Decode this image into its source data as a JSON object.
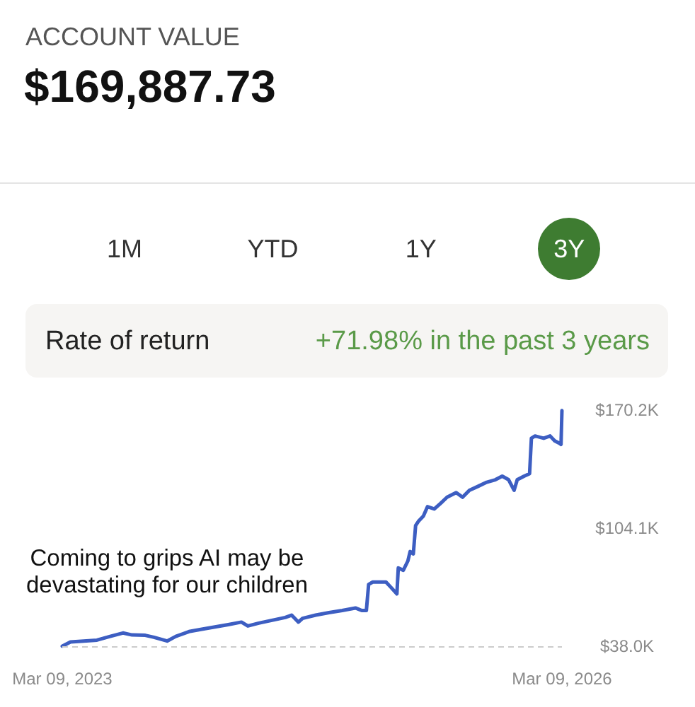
{
  "chart_data": {
    "type": "line",
    "title": "ACCOUNT VALUE",
    "subtitle": "$169,887.73",
    "annotations": [
      "1M",
      "YTD",
      "1Y",
      "3Y",
      "Rate of return",
      "+71.98% in the past 3 years",
      "Coming to grips AI may be devastating for our children"
    ],
    "x": [
      "2023-03-09",
      "2023-03-27",
      "2023-04-25",
      "2023-05-24",
      "2023-06-22",
      "2023-07-20",
      "2023-08-09",
      "2023-09-07",
      "2023-09-26",
      "2023-10-25",
      "2023-11-13",
      "2023-12-12",
      "2024-01-09",
      "2024-02-07",
      "2024-03-07",
      "2024-04-05",
      "2024-04-19",
      "2024-05-13",
      "2024-06-11",
      "2024-07-10",
      "2024-07-24",
      "2024-08-08",
      "2024-08-17",
      "2024-09-15",
      "2024-10-14",
      "2024-11-12",
      "2024-12-11",
      "2024-12-25",
      "2025-01-04",
      "2025-01-09",
      "2025-01-18",
      "2025-02-16",
      "2025-02-26",
      "2025-03-12",
      "2025-03-15",
      "2025-03-26",
      "2025-04-05",
      "2025-04-10",
      "2025-04-17",
      "2025-04-22",
      "2025-04-29",
      "2025-05-09",
      "2025-05-18",
      "2025-06-02",
      "2025-06-16",
      "2025-06-30",
      "2025-07-20",
      "2025-08-03",
      "2025-08-18",
      "2025-09-06",
      "2025-09-25",
      "2025-10-14",
      "2025-10-29",
      "2025-11-12",
      "2025-11-24",
      "2025-12-01",
      "2025-12-16",
      "2025-12-28",
      "2026-01-01",
      "2026-01-09",
      "2026-01-28",
      "2026-02-11",
      "2026-02-21",
      "2026-03-02",
      "2026-03-07",
      "2026-03-09"
    ],
    "values": [
      38.0,
      40.4,
      40.9,
      41.4,
      43.5,
      45.4,
      44.3,
      44.1,
      43.0,
      40.9,
      43.5,
      46.2,
      47.5,
      48.8,
      50.1,
      51.5,
      49.3,
      50.9,
      52.5,
      54.1,
      55.4,
      51.5,
      53.6,
      55.4,
      56.8,
      58.0,
      59.4,
      58.0,
      58.0,
      72.6,
      73.9,
      73.9,
      71.2,
      67.3,
      81.8,
      80.5,
      85.7,
      91.0,
      89.7,
      105.5,
      108.2,
      110.8,
      116.1,
      114.8,
      118.0,
      121.4,
      124.0,
      121.4,
      125.3,
      127.5,
      129.8,
      131.2,
      133.2,
      131.2,
      125.3,
      131.2,
      133.2,
      134.6,
      154.4,
      155.7,
      154.4,
      155.7,
      153.0,
      151.8,
      151.0,
      169.9
    ],
    "color": "#3d5ec2",
    "xlim": [
      "2023-03-09",
      "2026-03-09"
    ],
    "xticks": [
      {
        "value": "2023-03-09",
        "label": "Mar 09, 2023"
      },
      {
        "value": "2026-03-09",
        "label": "Mar 09, 2026"
      }
    ],
    "ylim": [
      38.0,
      170.2
    ],
    "yticks": [
      {
        "value": 38.0,
        "label": "$38.0K"
      },
      {
        "value": 104.1,
        "label": "$104.1K"
      },
      {
        "value": 170.2,
        "label": "$170.2K"
      }
    ],
    "ref_lines": [
      {
        "axis": "y",
        "value": 38.0,
        "color": "#cccccc",
        "line_style": "dashed"
      }
    ],
    "marker": "none",
    "line_style": "solid"
  }
}
